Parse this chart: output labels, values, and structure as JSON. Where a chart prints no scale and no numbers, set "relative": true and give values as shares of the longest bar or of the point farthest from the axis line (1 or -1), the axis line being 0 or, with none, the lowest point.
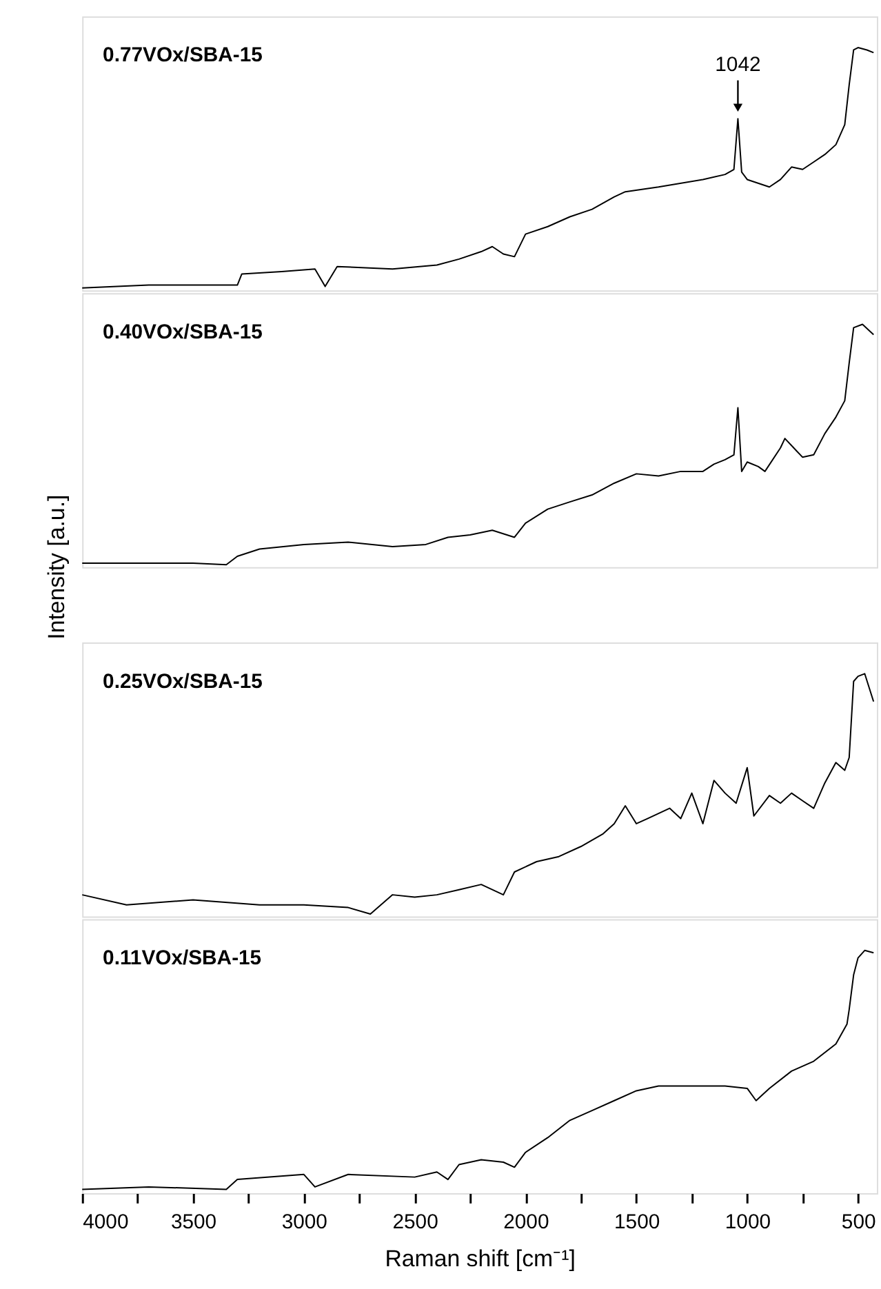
{
  "chart_data": [
    {
      "type": "line",
      "relative": true,
      "xlim": [
        4000,
        415
      ],
      "tick_labels": false,
      "x": [
        4000,
        3700,
        3300,
        3280,
        3100,
        2950,
        2904,
        2850,
        2600,
        2400,
        2300,
        2200,
        2150,
        2100,
        2050,
        2000,
        1900,
        1800,
        1700,
        1600,
        1550,
        1400,
        1200,
        1100,
        1060,
        1042,
        1025,
        1000,
        900,
        850,
        800,
        750,
        700,
        650,
        600,
        560,
        540,
        520,
        500,
        460,
        430
      ],
      "series": [
        {
          "name": "0.77VOx/SBA-15",
          "color": "#000000",
          "values": [
            0,
            0.012,
            0.012,
            0.058,
            0.068,
            0.079,
            0.006,
            0.089,
            0.079,
            0.095,
            0.12,
            0.151,
            0.172,
            0.141,
            0.13,
            0.224,
            0.255,
            0.296,
            0.327,
            0.379,
            0.4,
            0.42,
            0.451,
            0.472,
            0.493,
            0.704,
            0.482,
            0.451,
            0.42,
            0.451,
            0.503,
            0.493,
            0.524,
            0.555,
            0.596,
            0.679,
            0.845,
            0.99,
            1,
            0.99,
            0.979
          ]
        }
      ],
      "annotations": [
        {
          "text": "1042",
          "x": 1042,
          "y": 0.704
        }
      ]
    },
    {
      "type": "line",
      "relative": true,
      "xlim": [
        4000,
        415
      ],
      "tick_labels": false,
      "ylabel": "Intensity [a.u.]",
      "x": [
        4000,
        3500,
        3350,
        3300,
        3200,
        3000,
        2800,
        2600,
        2450,
        2350,
        2250,
        2150,
        2050,
        2000,
        1900,
        1800,
        1700,
        1600,
        1500,
        1400,
        1300,
        1200,
        1150,
        1100,
        1060,
        1042,
        1025,
        1000,
        950,
        920,
        850,
        830,
        780,
        750,
        700,
        650,
        600,
        560,
        540,
        520,
        480,
        430
      ],
      "series": [
        {
          "name": "0.40VOx/SBA-15",
          "color": "#000000",
          "values": [
            0.006,
            0.006,
            0,
            0.035,
            0.065,
            0.084,
            0.094,
            0.075,
            0.084,
            0.114,
            0.124,
            0.143,
            0.114,
            0.173,
            0.231,
            0.261,
            0.29,
            0.339,
            0.378,
            0.369,
            0.388,
            0.388,
            0.418,
            0.437,
            0.457,
            0.653,
            0.388,
            0.427,
            0.408,
            0.388,
            0.486,
            0.525,
            0.476,
            0.447,
            0.457,
            0.545,
            0.614,
            0.682,
            0.839,
            0.986,
            1,
            0.957
          ]
        }
      ]
    },
    {
      "type": "line",
      "relative": true,
      "xlim": [
        4000,
        415
      ],
      "tick_labels": false,
      "x": [
        4000,
        3800,
        3500,
        3200,
        3000,
        2800,
        2700,
        2600,
        2500,
        2400,
        2300,
        2200,
        2100,
        2050,
        1950,
        1850,
        1750,
        1650,
        1600,
        1550,
        1500,
        1450,
        1350,
        1300,
        1250,
        1200,
        1150,
        1100,
        1050,
        1000,
        970,
        900,
        850,
        800,
        750,
        700,
        650,
        600,
        560,
        540,
        520,
        500,
        470,
        430
      ],
      "series": [
        {
          "name": "0.25VOx/SBA-15",
          "color": "#000000",
          "values": [
            0.08,
            0.038,
            0.059,
            0.038,
            0.038,
            0.027,
            0,
            0.08,
            0.07,
            0.08,
            0.101,
            0.123,
            0.08,
            0.175,
            0.218,
            0.239,
            0.281,
            0.334,
            0.376,
            0.45,
            0.376,
            0.397,
            0.44,
            0.397,
            0.503,
            0.376,
            0.556,
            0.503,
            0.461,
            0.609,
            0.408,
            0.493,
            0.461,
            0.503,
            0.471,
            0.44,
            0.545,
            0.63,
            0.598,
            0.651,
            0.968,
            0.989,
            1,
            0.884
          ]
        }
      ]
    },
    {
      "type": "line",
      "relative": true,
      "xlim": [
        4000,
        415
      ],
      "tick_labels": "x",
      "xlabel": "Raman shift [cm⁻¹]",
      "xticks": [
        4000,
        {
          "value": 3750,
          "label": null
        },
        3500,
        {
          "value": 3250,
          "label": null
        },
        3000,
        {
          "value": 2750,
          "label": null
        },
        2500,
        {
          "value": 2250,
          "label": null
        },
        2000,
        {
          "value": 1750,
          "label": null
        },
        1500,
        {
          "value": 1250,
          "label": null
        },
        1000,
        {
          "value": 750,
          "label": null
        },
        500
      ],
      "x": [
        4000,
        3700,
        3350,
        3300,
        3000,
        2950,
        2800,
        2500,
        2400,
        2350,
        2300,
        2200,
        2100,
        2050,
        2000,
        1900,
        1800,
        1700,
        1600,
        1500,
        1400,
        1300,
        1200,
        1100,
        1000,
        960,
        900,
        800,
        700,
        600,
        550,
        540,
        520,
        500,
        470,
        430
      ],
      "series": [
        {
          "name": "0.11VOx/SBA-15",
          "color": "#000000",
          "values": [
            0.006,
            0.016,
            0.006,
            0.047,
            0.068,
            0.016,
            0.068,
            0.057,
            0.078,
            0.047,
            0.109,
            0.129,
            0.119,
            0.098,
            0.16,
            0.221,
            0.293,
            0.334,
            0.375,
            0.416,
            0.436,
            0.436,
            0.436,
            0.436,
            0.426,
            0.375,
            0.426,
            0.498,
            0.539,
            0.611,
            0.693,
            0.754,
            0.898,
            0.969,
            1,
            0.99
          ]
        }
      ]
    }
  ]
}
